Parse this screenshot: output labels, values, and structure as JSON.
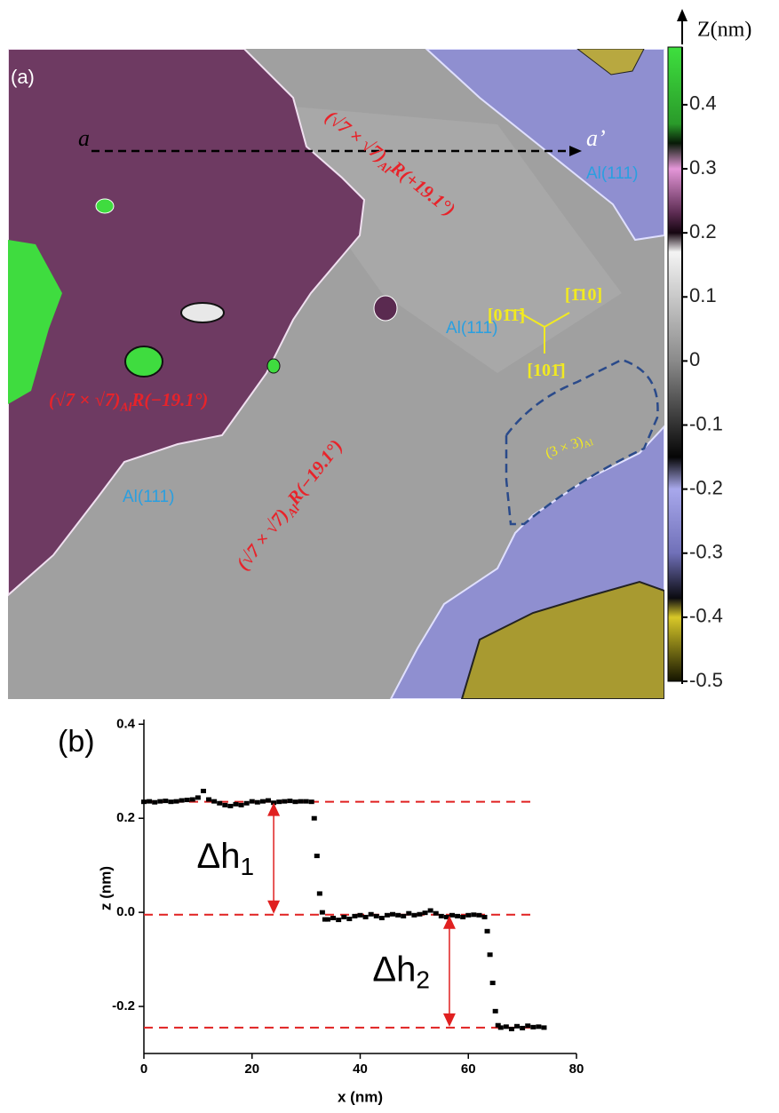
{
  "chart_data": [
    {
      "type": "colorbar",
      "title": "Z(nm)",
      "ylim": [
        -0.5,
        0.49
      ],
      "yticks": [
        0.4,
        0.3,
        0.2,
        0.1,
        0,
        -0.1,
        -0.2,
        -0.3,
        -0.4,
        -0.5
      ],
      "colorscale": [
        {
          "value": 0.49,
          "color": "#3ee03e"
        },
        {
          "value": 0.37,
          "color": "#2a9a2a"
        },
        {
          "value": 0.34,
          "color": "#081a08"
        },
        {
          "value": 0.3,
          "color": "#e496d8"
        },
        {
          "value": 0.23,
          "color": "#5a2a50"
        },
        {
          "value": 0.2,
          "color": "#150510"
        },
        {
          "value": 0.17,
          "color": "#f4f4f4"
        },
        {
          "value": 0,
          "color": "#8a8a8a"
        },
        {
          "value": -0.15,
          "color": "#050505"
        },
        {
          "value": -0.2,
          "color": "#a8a8ec"
        },
        {
          "value": -0.3,
          "color": "#7070b8"
        },
        {
          "value": -0.37,
          "color": "#0a0a10"
        },
        {
          "value": -0.4,
          "color": "#d8c828"
        },
        {
          "value": -0.5,
          "color": "#141400"
        }
      ],
      "annotations": [
        {
          "text": "(a)",
          "color": "#ffffff"
        },
        {
          "text": "a",
          "color": "#000000"
        },
        {
          "text": "a’",
          "color": "#ffffff"
        },
        {
          "text": "(√7 × √7)",
          "sub": "Al",
          "tail": "R(+19.1°)",
          "color": "#e8232a"
        },
        {
          "text": "(√7 × √7)",
          "sub": "Al",
          "tail": "R(−19.1°)",
          "color": "#e8232a"
        },
        {
          "text": "(√7 × √7)",
          "sub": "Al",
          "tail": "R(−19.1°)",
          "color": "#e8232a"
        },
        {
          "text": "Al(111)",
          "color": "#2a9fe0"
        },
        {
          "text": "Al(111)",
          "color": "#2a9fe0"
        },
        {
          "text": "Al(111)",
          "color": "#2a9fe0"
        },
        {
          "text": "[01̄1̄]",
          "color": "#f2ea20"
        },
        {
          "text": "[1̄10]",
          "color": "#f2ea20"
        },
        {
          "text": "[101̄]",
          "color": "#f2ea20"
        },
        {
          "text": "(3 × 3)",
          "sub": "Al",
          "color": "#f2ea20"
        }
      ]
    },
    {
      "type": "line",
      "label": "(b)",
      "xlabel": "x (nm)",
      "ylabel": "z (nm)",
      "xlim": [
        0,
        80
      ],
      "xticks": [
        0,
        20,
        40,
        60,
        80
      ],
      "ylim": [
        -0.3,
        0.41
      ],
      "yticks": [
        0.4,
        0.2,
        {
          "value": 0,
          "label": "0.0"
        },
        -0.2
      ],
      "color": "#000000",
      "x": [
        0,
        1,
        2,
        3,
        4,
        5,
        6,
        7,
        8,
        9,
        10,
        11,
        12,
        13,
        14,
        15,
        16,
        17,
        18,
        19,
        20,
        21,
        22,
        23,
        24,
        25,
        26,
        27,
        28,
        29,
        30,
        31,
        31.5,
        32,
        32.5,
        33,
        33.5,
        34,
        35,
        36,
        37,
        38,
        39,
        40,
        41,
        42,
        43,
        44,
        45,
        46,
        47,
        48,
        49,
        50,
        51,
        52,
        53,
        54,
        55,
        56,
        57,
        58,
        59,
        60,
        61,
        62,
        63,
        63.5,
        64,
        64.5,
        65,
        65.5,
        66,
        67,
        68,
        69,
        70,
        71,
        72,
        73,
        74
      ],
      "values": [
        0.235,
        0.236,
        0.234,
        0.236,
        0.237,
        0.235,
        0.236,
        0.238,
        0.239,
        0.24,
        0.244,
        0.258,
        0.24,
        0.236,
        0.232,
        0.228,
        0.226,
        0.23,
        0.228,
        0.232,
        0.236,
        0.234,
        0.236,
        0.238,
        0.233,
        0.235,
        0.236,
        0.237,
        0.235,
        0.236,
        0.236,
        0.235,
        0.2,
        0.12,
        0.04,
        0.0,
        -0.015,
        -0.015,
        -0.012,
        -0.016,
        -0.01,
        -0.014,
        -0.008,
        -0.006,
        -0.01,
        -0.004,
        -0.008,
        -0.012,
        -0.006,
        -0.004,
        -0.006,
        -0.008,
        -0.002,
        -0.006,
        -0.004,
        -0.001,
        0.004,
        -0.002,
        -0.008,
        -0.01,
        -0.006,
        -0.008,
        -0.01,
        -0.006,
        -0.005,
        -0.006,
        -0.01,
        -0.04,
        -0.09,
        -0.15,
        -0.21,
        -0.24,
        -0.245,
        -0.243,
        -0.248,
        -0.242,
        -0.246,
        -0.241,
        -0.244,
        -0.243,
        -0.245
      ],
      "reference_lines": [
        0.235,
        -0.005,
        -0.245
      ],
      "reference_color": "#e02020",
      "annotations": [
        {
          "text": "Δh",
          "sub": "1",
          "x": 24,
          "y1": 0.235,
          "y2": -0.005
        },
        {
          "text": "Δh",
          "sub": "2",
          "x": 56.5,
          "y1": -0.005,
          "y2": -0.245
        }
      ]
    }
  ]
}
